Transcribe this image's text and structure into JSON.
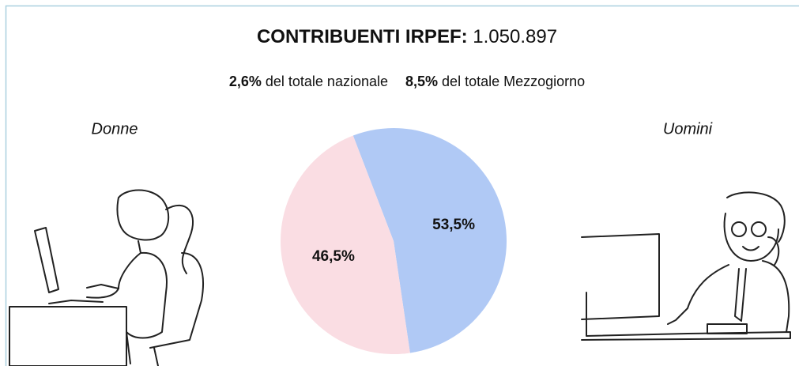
{
  "header": {
    "label": "CONTRIBUENTI IRPEF:",
    "value": "1.050.897"
  },
  "subtitle": [
    {
      "value": "2,6%",
      "text": "del totale nazionale"
    },
    {
      "value": "8,5%",
      "text": "del totale Mezzogiorno"
    }
  ],
  "chart_data": {
    "type": "pie",
    "categories": [
      "Uomini",
      "Donne"
    ],
    "values": [
      53.5,
      46.5
    ],
    "value_labels": [
      "53,5%",
      "46,5%"
    ],
    "colors": [
      "#b0c9f5",
      "#fadde3"
    ]
  }
}
